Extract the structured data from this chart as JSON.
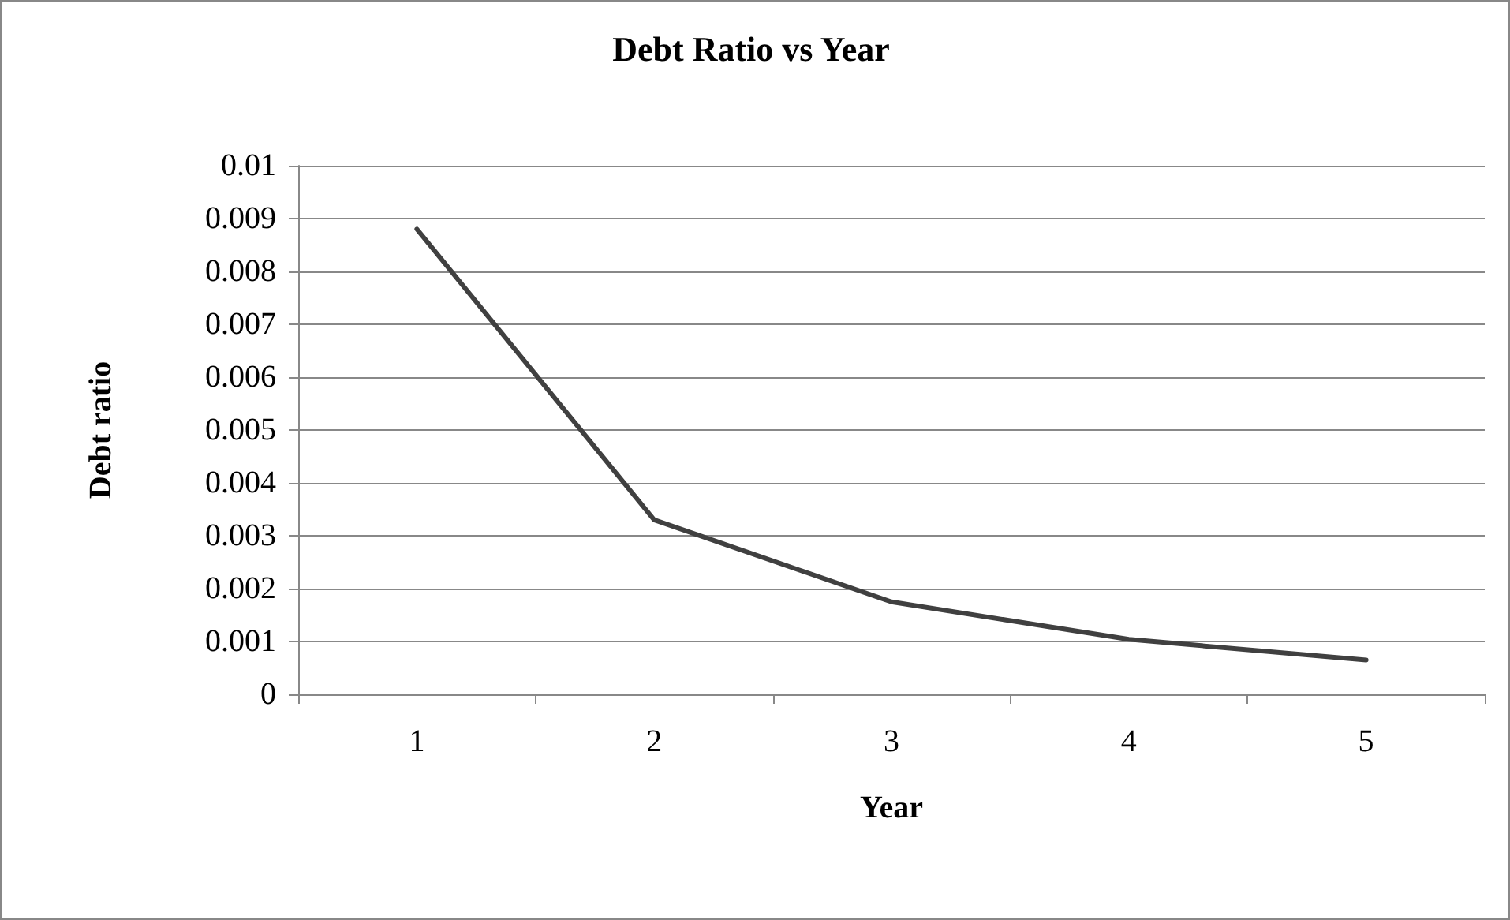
{
  "chart_data": {
    "type": "line",
    "title": "Debt Ratio vs Year",
    "xlabel": "Year",
    "ylabel": "Debt ratio",
    "categories": [
      "1",
      "2",
      "3",
      "4",
      "5"
    ],
    "series": [
      {
        "color": "#404040",
        "values": [
          0.0088,
          0.0033,
          0.00175,
          0.00104,
          0.00065
        ]
      }
    ],
    "ylim": [
      0,
      0.01
    ],
    "yticks": [
      0,
      0.001,
      0.002,
      0.003,
      0.004,
      0.005,
      0.006,
      0.007,
      0.008,
      0.009,
      0.01
    ],
    "grid": "y",
    "marker": "none",
    "line_style": "solid"
  }
}
